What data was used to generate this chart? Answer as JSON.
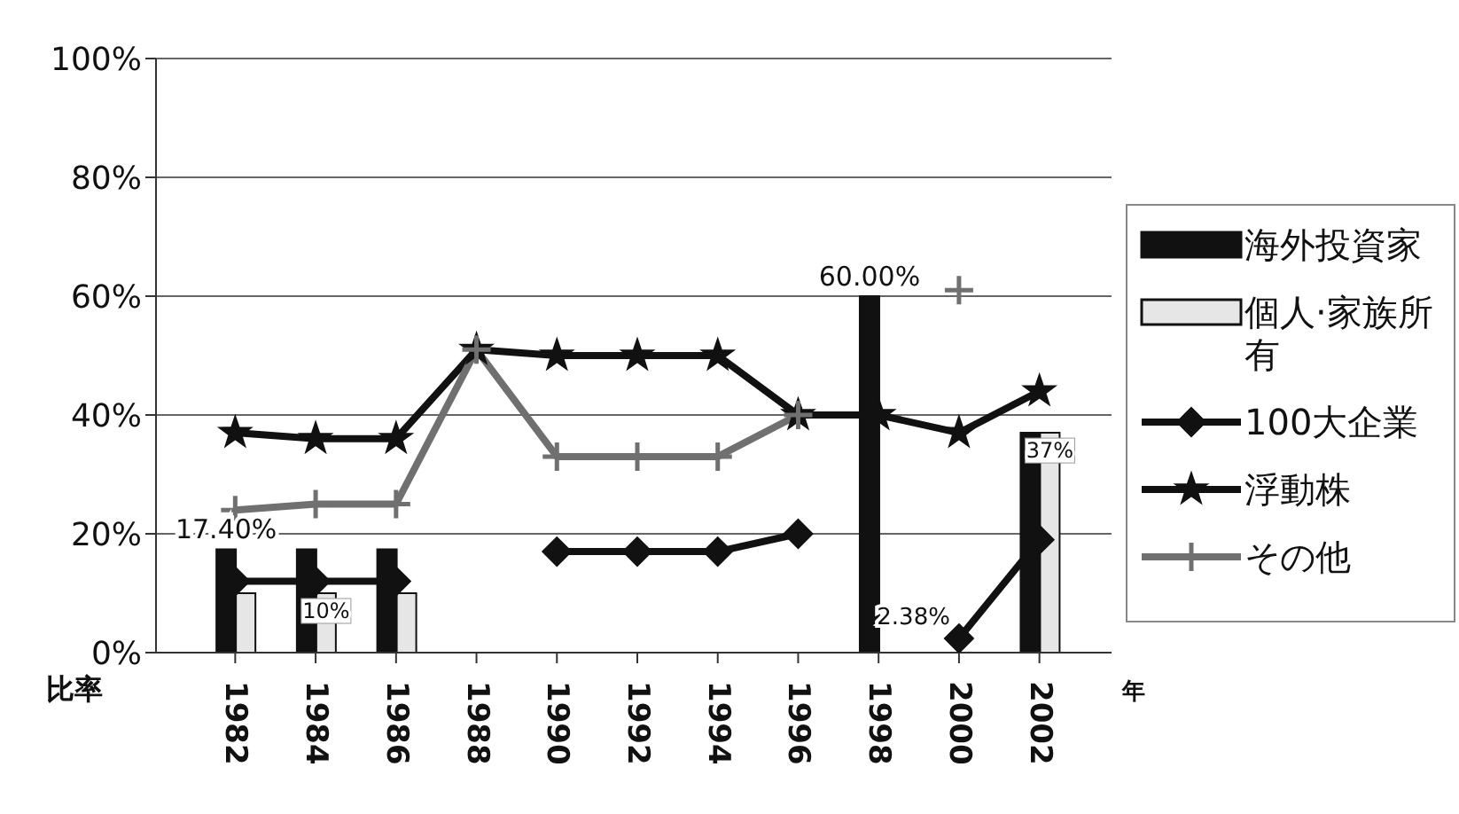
{
  "chart_data": {
    "type": "bar",
    "xlabel": "年",
    "ylabel": "比率",
    "categories": [
      "1982",
      "1984",
      "1986",
      "1988",
      "1990",
      "1992",
      "1994",
      "1996",
      "1998",
      "2000",
      "2002"
    ],
    "series": [
      {
        "name": "海外投資家",
        "color": "#111111",
        "values": [
          17.4,
          17.4,
          17.4,
          null,
          null,
          null,
          null,
          null,
          60,
          null,
          37
        ],
        "value_labels": [
          "17.40%",
          null,
          null,
          null,
          null,
          null,
          null,
          null,
          "60.00%",
          null,
          null
        ]
      },
      {
        "name": "個人·家族所有",
        "color": "#e6e6e6",
        "values": [
          10,
          10,
          10,
          null,
          null,
          null,
          null,
          null,
          null,
          null,
          37
        ],
        "value_labels": [
          null,
          "10%",
          null,
          null,
          null,
          null,
          null,
          null,
          null,
          null,
          "37%"
        ]
      },
      {
        "name": "100大企業",
        "type": "line",
        "color": "#111111",
        "marker": "diamond",
        "values": [
          12,
          12,
          12,
          null,
          17,
          17,
          17,
          20,
          null,
          2.38,
          19
        ],
        "value_labels": [
          null,
          null,
          null,
          null,
          null,
          null,
          null,
          null,
          null,
          "2.38%",
          null
        ]
      },
      {
        "name": "浮動株",
        "type": "line",
        "color": "#111111",
        "marker": "star",
        "values": [
          37,
          36,
          36,
          51,
          50,
          50,
          50,
          40,
          40,
          37,
          44
        ]
      },
      {
        "name": "その他",
        "type": "line",
        "color": "#707070",
        "marker": "cross",
        "values": [
          24,
          25,
          25,
          51,
          33,
          33,
          33,
          40,
          null,
          61,
          null
        ]
      }
    ],
    "ylim": [
      0,
      100
    ],
    "yticks": [
      {
        "value": 0,
        "label": "0%"
      },
      {
        "value": 20,
        "label": "20%"
      },
      {
        "value": 40,
        "label": "40%"
      },
      {
        "value": 60,
        "label": "60%"
      },
      {
        "value": 80,
        "label": "80%"
      },
      {
        "value": 100,
        "label": "100%"
      }
    ],
    "grid": "y",
    "legend": "right"
  }
}
